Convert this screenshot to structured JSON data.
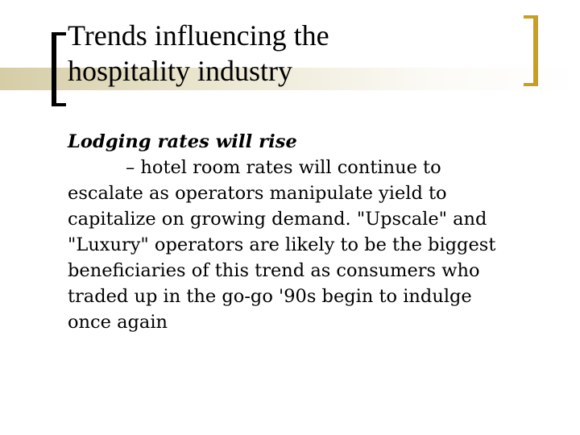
{
  "slide": {
    "title_lines": [
      "Trends influencing the",
      "hospitality industry"
    ],
    "heading": "Lodging rates will rise",
    "body_lines": [
      "– hotel room rates will continue to",
      "escalate as operators manipulate yield to",
      "capitalize on growing demand. \"Upscale\" and",
      "\"Luxury\" operators are likely to be the biggest",
      "beneficiaries of this trend as consumers who",
      "traded up in the go-go '90s begin to indulge",
      "once again"
    ]
  },
  "colors": {
    "left_bracket": "#000000",
    "right_bracket": "#c8a020",
    "title_band": "#cec496"
  }
}
